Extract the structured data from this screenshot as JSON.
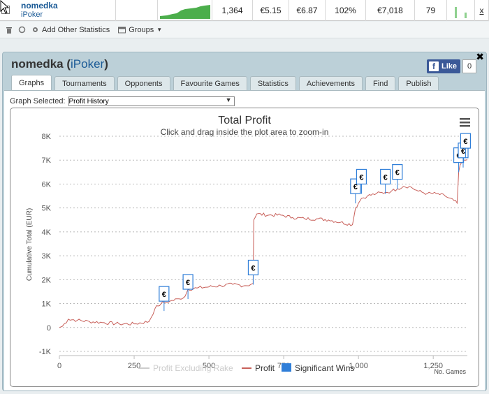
{
  "stats_row": {
    "player_name": "nomedka",
    "network": "iPoker",
    "hands": "1,364",
    "v1": "€5.15",
    "v2": "€6.87",
    "v3": "102%",
    "v4": "€7,018",
    "v5": "79",
    "x_link": "x"
  },
  "toolbar": {
    "add_stats_label": "Add Other Statistics",
    "groups_label": "Groups"
  },
  "panel": {
    "player_name": "nomedka",
    "network": "iPoker",
    "fb_like_label": "Like",
    "fb_count": "0",
    "tabs": [
      "Graphs",
      "Tournaments",
      "Opponents",
      "Favourite Games",
      "Statistics",
      "Achievements",
      "Find",
      "Publish"
    ],
    "active_tab": "Graphs",
    "graph_selected_label": "Graph Selected:",
    "graph_selected_value": "Profit History"
  },
  "colors": {
    "profit": "#c8605a",
    "profit_excl_rake": "#cccccc",
    "significant": "#2f7ed8"
  },
  "chart_data": {
    "type": "line",
    "title": "Total Profit",
    "subtitle": "Click and drag inside the plot area to zoom-in",
    "xlabel": "No. Games",
    "ylabel": "Cumulative Total (EUR)",
    "xlim": [
      0,
      1364
    ],
    "ylim": [
      -1000,
      8000
    ],
    "y_ticks": [
      -1000,
      0,
      1000,
      2000,
      3000,
      4000,
      5000,
      6000,
      7000,
      8000
    ],
    "y_tick_labels": [
      "-1K",
      "0",
      "1K",
      "2K",
      "3K",
      "4K",
      "5K",
      "6K",
      "7K",
      "8K"
    ],
    "x_ticks": [
      0,
      250,
      500,
      750,
      1000,
      1250
    ],
    "x_tick_labels": [
      "0",
      "250",
      "500",
      "750",
      "1,000",
      "1,250"
    ],
    "legend": [
      "Profit Excluding Rake",
      "Profit",
      "Significant Wins"
    ],
    "legend_placement": "bottom",
    "grid": true,
    "series": [
      {
        "name": "Profit",
        "x": [
          0,
          10,
          30,
          60,
          100,
          150,
          200,
          250,
          300,
          320,
          330,
          340,
          350,
          370,
          400,
          420,
          430,
          460,
          500,
          540,
          580,
          620,
          640,
          648,
          650,
          660,
          700,
          740,
          780,
          820,
          860,
          900,
          940,
          980,
          990,
          1000,
          1010,
          1030,
          1060,
          1090,
          1110,
          1130,
          1150,
          1170,
          1200,
          1230,
          1260,
          1290,
          1320,
          1330,
          1335,
          1340,
          1350,
          1358,
          1364
        ],
        "y": [
          0,
          50,
          350,
          300,
          250,
          200,
          150,
          150,
          250,
          800,
          900,
          1000,
          1050,
          1100,
          1200,
          1300,
          1600,
          1650,
          1700,
          1750,
          1800,
          1750,
          1800,
          1850,
          4500,
          4750,
          4700,
          4700,
          4600,
          4550,
          4550,
          4500,
          4400,
          4300,
          5000,
          5200,
          5400,
          5500,
          5600,
          5650,
          5700,
          5800,
          5900,
          5900,
          5700,
          5600,
          5600,
          5500,
          5300,
          5200,
          6500,
          6800,
          7000,
          7000,
          7018
        ]
      }
    ],
    "significant_wins": [
      {
        "x": 350,
        "y": 1100
      },
      {
        "x": 430,
        "y": 1600
      },
      {
        "x": 648,
        "y": 2200
      },
      {
        "x": 990,
        "y": 5600
      },
      {
        "x": 1010,
        "y": 6000
      },
      {
        "x": 1090,
        "y": 6000
      },
      {
        "x": 1130,
        "y": 6200
      },
      {
        "x": 1335,
        "y": 6900
      },
      {
        "x": 1350,
        "y": 7100
      },
      {
        "x": 1358,
        "y": 7500
      }
    ],
    "significant_marker_label": "€",
    "menu_icon": "hamburger-menu-icon"
  }
}
